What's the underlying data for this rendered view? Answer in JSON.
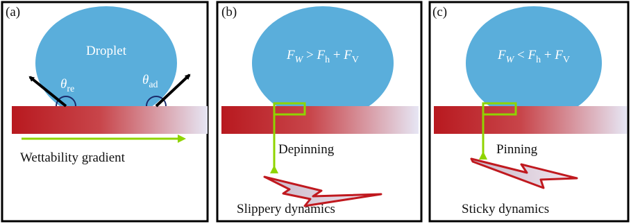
{
  "panels": [
    {
      "label": "(a)",
      "droplet_label": "Droplet",
      "angles": [
        {
          "symbol": "θ",
          "sub": "re"
        },
        {
          "symbol": "θ",
          "sub": "ad"
        }
      ],
      "caption": "Wettability gradient"
    },
    {
      "label": "(b)",
      "formula": [
        "F",
        "W",
        " > ",
        "F",
        "h",
        " + ",
        "F",
        "V"
      ],
      "state": "Depinning",
      "caption": "Slippery dynamics"
    },
    {
      "label": "(c)",
      "formula": [
        "F",
        "W",
        " < ",
        "F",
        "h",
        " + ",
        "F",
        "V"
      ],
      "state": "Pinning",
      "caption": "Sticky dynamics"
    }
  ]
}
